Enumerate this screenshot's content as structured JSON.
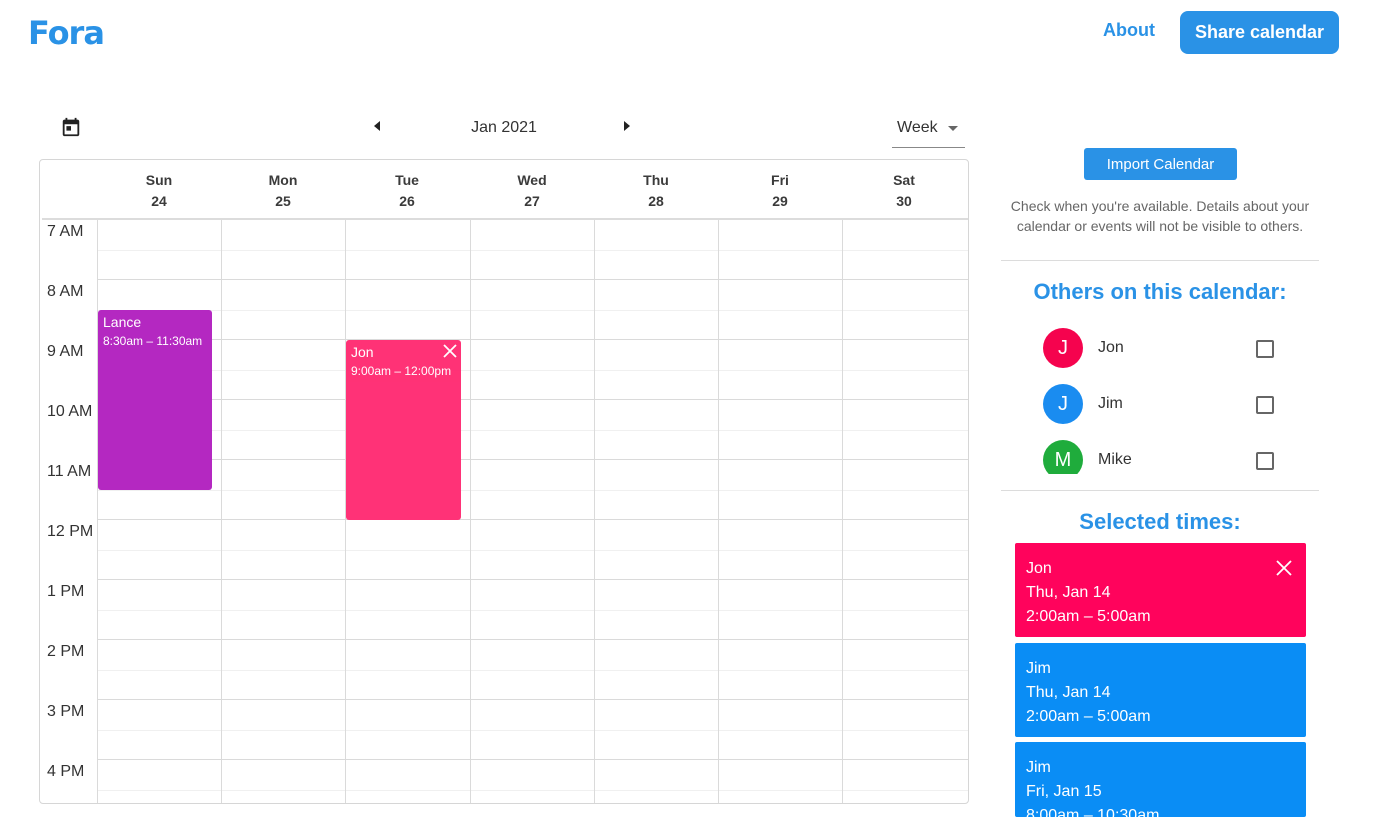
{
  "header": {
    "logo": "Fora",
    "about_label": "About",
    "share_label": "Share calendar"
  },
  "toolbar": {
    "month_label": "Jan 2021",
    "view_label": "Week"
  },
  "calendar": {
    "days": [
      {
        "name": "Sun",
        "date": "24"
      },
      {
        "name": "Mon",
        "date": "25"
      },
      {
        "name": "Tue",
        "date": "26"
      },
      {
        "name": "Wed",
        "date": "27"
      },
      {
        "name": "Thu",
        "date": "28"
      },
      {
        "name": "Fri",
        "date": "29"
      },
      {
        "name": "Sat",
        "date": "30"
      }
    ],
    "hours": [
      "7 AM",
      "8 AM",
      "9 AM",
      "10 AM",
      "11 AM",
      "12 PM",
      "1 PM",
      "2 PM",
      "3 PM",
      "4 PM"
    ],
    "events": [
      {
        "title": "Lance",
        "time": "8:30am – 11:30am",
        "color": "#b428c1"
      },
      {
        "title": "Jon",
        "time": "9:00am – 12:00pm",
        "color": "#ff2e74"
      }
    ]
  },
  "panel": {
    "import_label": "Import Calendar",
    "help_line1": "Check when you're available. Details about your",
    "help_line2": "calendar or events will not be visible to others.",
    "others_title": "Others on this calendar:",
    "people": [
      {
        "initial": "J",
        "name": "Jon",
        "color": "#f5034e",
        "checked": false
      },
      {
        "initial": "J",
        "name": "Jim",
        "color": "#1a8cf0",
        "checked": false
      },
      {
        "initial": "M",
        "name": "Mike",
        "color": "#1fac3c",
        "checked": false
      }
    ],
    "selected_title": "Selected times:",
    "selected": [
      {
        "name": "Jon",
        "date": "Thu, Jan 14",
        "time": "2:00am – 5:00am",
        "color": "#ff035c"
      },
      {
        "name": "Jim",
        "date": "Thu, Jan 14",
        "time": "2:00am – 5:00am",
        "color": "#0a8df5"
      },
      {
        "name": "Jim",
        "date": "Fri, Jan 15",
        "time": "8:00am – 10:30am",
        "color": "#0a8df5"
      }
    ]
  }
}
